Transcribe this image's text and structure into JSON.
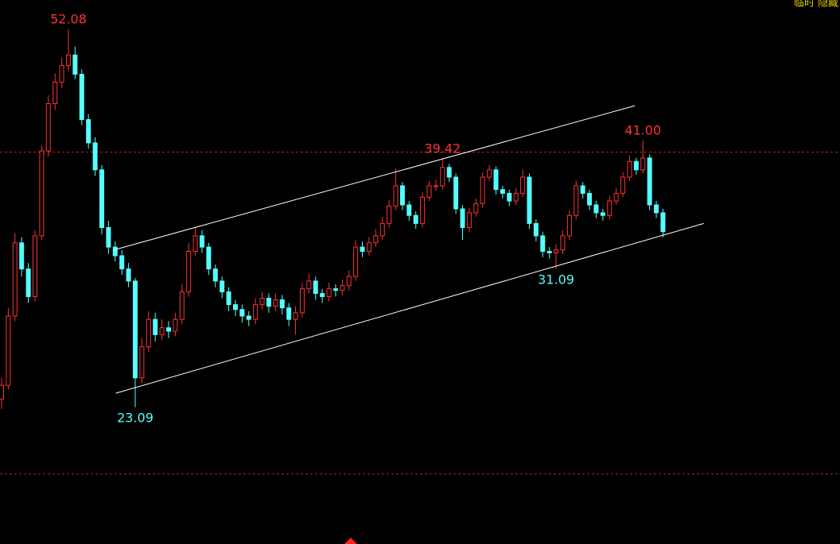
{
  "chart_data": {
    "type": "candlestick",
    "top_right_text": "临时 隐藏",
    "log_scale": true,
    "ylim": [
      17.2,
      55.5
    ],
    "xlim": [
      -0.24,
      125.5
    ],
    "up_color": "#ff3232",
    "down_color": "#54ffff",
    "trendline_color": "#ffffff",
    "hline_color": "#c81e1e",
    "hlines": [
      40,
      20
    ],
    "candles": [
      [
        23.5,
        24.6,
        23.0,
        24.2
      ],
      [
        24.2,
        28.6,
        24.0,
        28.1
      ],
      [
        28.1,
        33.6,
        27.8,
        32.9
      ],
      [
        32.9,
        33.3,
        30.6,
        31.1
      ],
      [
        31.1,
        31.5,
        28.9,
        29.3
      ],
      [
        29.3,
        33.8,
        29.0,
        33.4
      ],
      [
        33.4,
        40.6,
        33.1,
        40.1
      ],
      [
        40.1,
        45.2,
        39.6,
        44.4
      ],
      [
        44.4,
        47.4,
        43.8,
        46.5
      ],
      [
        46.5,
        49.0,
        45.9,
        48.2
      ],
      [
        48.2,
        52.08,
        47.6,
        49.3
      ],
      [
        49.3,
        50.2,
        46.8,
        47.3
      ],
      [
        47.3,
        47.8,
        42.4,
        42.9
      ],
      [
        42.9,
        43.4,
        40.3,
        40.8
      ],
      [
        40.8,
        41.3,
        38.0,
        38.5
      ],
      [
        38.5,
        38.9,
        33.5,
        34.0
      ],
      [
        34.0,
        34.5,
        32.1,
        32.6
      ],
      [
        32.6,
        33.0,
        31.6,
        32.0
      ],
      [
        32.0,
        32.4,
        30.7,
        31.1
      ],
      [
        31.1,
        31.5,
        29.9,
        30.3
      ],
      [
        30.3,
        30.5,
        23.09,
        24.6
      ],
      [
        24.6,
        26.8,
        24.3,
        26.3
      ],
      [
        26.3,
        28.4,
        26.0,
        27.9
      ],
      [
        27.9,
        28.3,
        26.6,
        27.0
      ],
      [
        27.0,
        27.9,
        26.7,
        27.4
      ],
      [
        27.4,
        27.8,
        26.8,
        27.2
      ],
      [
        27.2,
        28.3,
        26.9,
        27.9
      ],
      [
        27.9,
        30.1,
        27.6,
        29.6
      ],
      [
        29.6,
        32.9,
        29.3,
        32.3
      ],
      [
        32.3,
        34.0,
        32.0,
        33.4
      ],
      [
        33.4,
        33.8,
        32.2,
        32.6
      ],
      [
        32.6,
        32.9,
        30.7,
        31.1
      ],
      [
        31.1,
        31.4,
        29.9,
        30.3
      ],
      [
        30.3,
        30.6,
        29.2,
        29.6
      ],
      [
        29.6,
        29.9,
        28.4,
        28.8
      ],
      [
        28.8,
        29.1,
        28.1,
        28.5
      ],
      [
        28.5,
        28.8,
        27.7,
        28.1
      ],
      [
        28.1,
        28.4,
        27.5,
        27.9
      ],
      [
        27.9,
        29.2,
        27.6,
        28.8
      ],
      [
        28.8,
        29.6,
        28.5,
        29.2
      ],
      [
        29.2,
        29.5,
        28.3,
        28.7
      ],
      [
        28.7,
        29.5,
        28.4,
        29.1
      ],
      [
        29.1,
        29.4,
        28.2,
        28.6
      ],
      [
        28.6,
        28.9,
        27.5,
        27.9
      ],
      [
        27.9,
        28.7,
        27.0,
        28.3
      ],
      [
        28.3,
        30.2,
        28.0,
        29.8
      ],
      [
        29.8,
        30.8,
        29.5,
        30.3
      ],
      [
        30.3,
        30.6,
        29.1,
        29.5
      ],
      [
        29.5,
        29.8,
        28.9,
        29.3
      ],
      [
        29.3,
        30.2,
        29.0,
        29.8
      ],
      [
        29.8,
        30.1,
        29.3,
        29.7
      ],
      [
        29.7,
        30.4,
        29.4,
        30.0
      ],
      [
        30.0,
        31.0,
        29.7,
        30.6
      ],
      [
        30.6,
        33.1,
        30.3,
        32.6
      ],
      [
        32.6,
        33.0,
        31.9,
        32.3
      ],
      [
        32.3,
        33.3,
        32.0,
        32.9
      ],
      [
        32.9,
        33.9,
        32.6,
        33.4
      ],
      [
        33.4,
        34.8,
        33.1,
        34.3
      ],
      [
        34.3,
        36.1,
        34.0,
        35.6
      ],
      [
        35.6,
        38.6,
        35.3,
        37.2
      ],
      [
        37.2,
        37.5,
        35.3,
        35.7
      ],
      [
        35.7,
        36.0,
        34.5,
        34.9
      ],
      [
        34.9,
        35.2,
        33.9,
        34.3
      ],
      [
        34.3,
        36.7,
        34.0,
        36.3
      ],
      [
        36.3,
        37.6,
        36.0,
        37.2
      ],
      [
        37.2,
        37.7,
        36.8,
        37.2
      ],
      [
        37.2,
        39.42,
        36.9,
        38.7
      ],
      [
        38.7,
        39.0,
        37.5,
        37.9
      ],
      [
        37.9,
        38.2,
        35.0,
        35.4
      ],
      [
        35.4,
        35.7,
        33.1,
        34.0
      ],
      [
        34.0,
        35.5,
        33.7,
        35.1
      ],
      [
        35.1,
        36.2,
        34.8,
        35.8
      ],
      [
        35.8,
        38.3,
        35.5,
        37.9
      ],
      [
        37.9,
        38.9,
        37.6,
        38.5
      ],
      [
        38.5,
        38.8,
        36.5,
        36.9
      ],
      [
        36.9,
        37.2,
        36.2,
        36.6
      ],
      [
        36.6,
        36.9,
        35.6,
        36.0
      ],
      [
        36.0,
        37.0,
        35.7,
        36.6
      ],
      [
        36.6,
        38.5,
        36.3,
        37.9
      ],
      [
        37.9,
        38.2,
        33.9,
        34.3
      ],
      [
        34.3,
        34.6,
        33.0,
        33.4
      ],
      [
        33.4,
        33.7,
        31.9,
        32.3
      ],
      [
        32.3,
        32.6,
        31.8,
        32.2
      ],
      [
        32.2,
        32.8,
        31.09,
        32.4
      ],
      [
        32.4,
        33.8,
        32.1,
        33.4
      ],
      [
        33.4,
        35.3,
        33.1,
        34.9
      ],
      [
        34.9,
        37.6,
        34.6,
        37.2
      ],
      [
        37.2,
        37.5,
        36.2,
        36.6
      ],
      [
        36.6,
        36.9,
        35.3,
        35.7
      ],
      [
        35.7,
        36.0,
        34.7,
        35.1
      ],
      [
        35.1,
        35.4,
        34.5,
        34.9
      ],
      [
        34.9,
        36.4,
        34.6,
        36.0
      ],
      [
        36.0,
        37.0,
        35.7,
        36.6
      ],
      [
        36.6,
        38.3,
        36.3,
        37.9
      ],
      [
        37.9,
        39.7,
        37.6,
        39.2
      ],
      [
        39.2,
        39.5,
        38.1,
        38.5
      ],
      [
        38.5,
        41,
        38.2,
        39.5
      ],
      [
        39.5,
        39.8,
        35.3,
        35.7
      ],
      [
        35.7,
        36.0,
        34.7,
        35.1
      ],
      [
        35.1,
        35.4,
        33.3,
        33.7
      ]
    ],
    "annotations": [
      52.08,
      23.09,
      39.42,
      {
        "value": 41,
        "label": "41.00"
      },
      31.09
    ],
    "trendlines": [
      {
        "x": [
          16.8,
          94.8
        ],
        "y": [
          32.4,
          44.2
        ]
      },
      {
        "x": [
          17.1,
          105.1
        ],
        "y": [
          23.8,
          34.3
        ]
      }
    ]
  }
}
